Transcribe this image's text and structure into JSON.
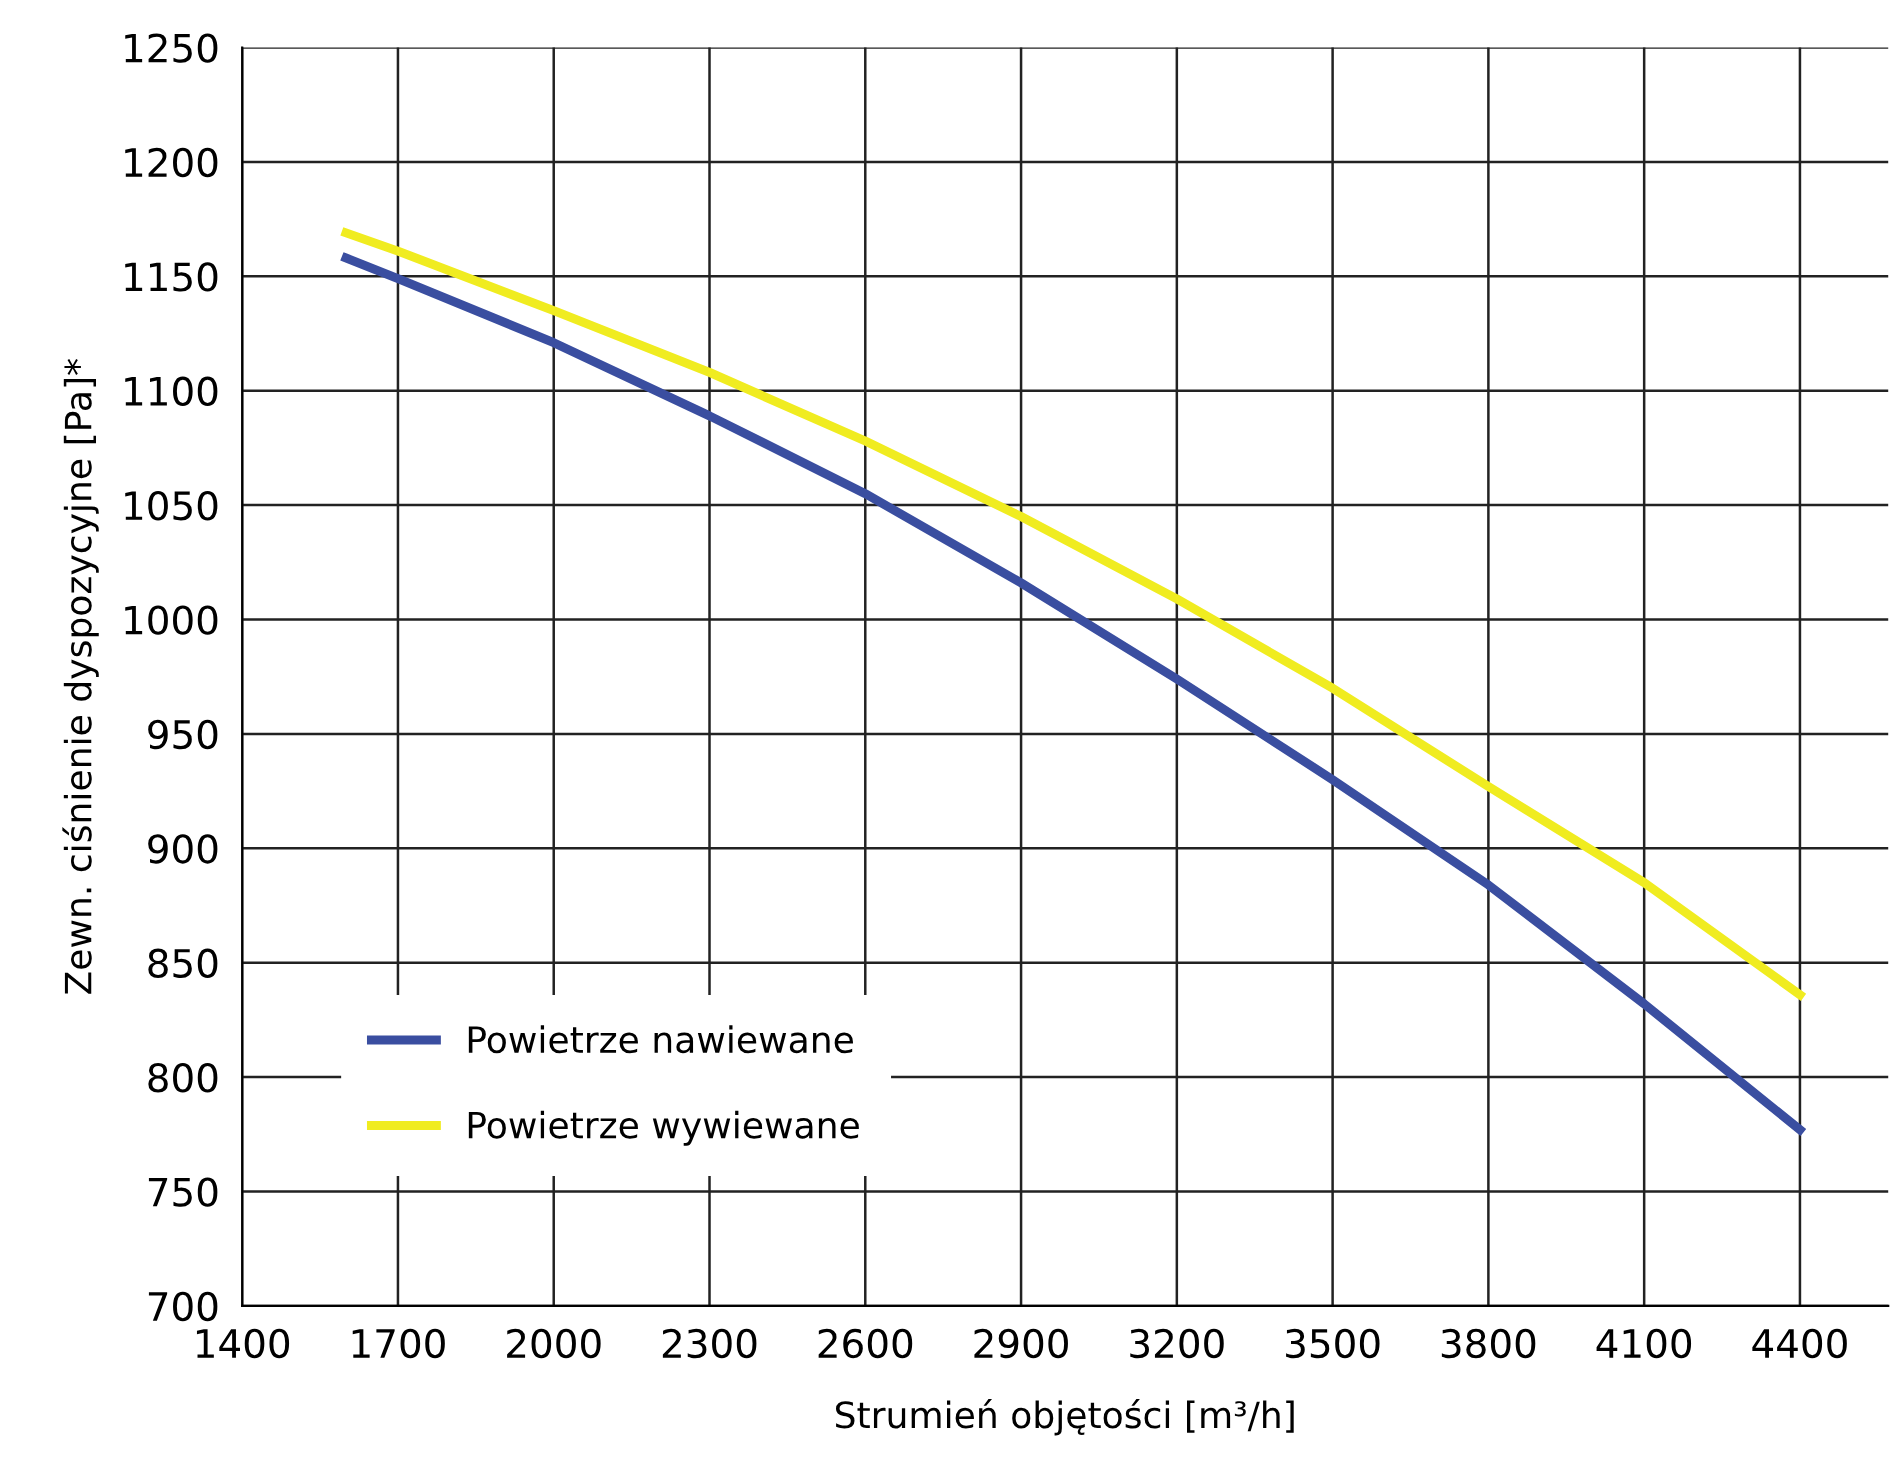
{
  "chart_data": {
    "type": "line",
    "xlabel": "Strumień objętości [m³/h]",
    "ylabel": "Zewn. ciśnienie dyspozycyjne [Pa]*",
    "xlim": [
      1400,
      4570
    ],
    "xticks": [
      1400,
      1700,
      2000,
      2300,
      2600,
      2900,
      3200,
      3500,
      3800,
      4100,
      4400
    ],
    "ylim": [
      700,
      1250
    ],
    "yticks": [
      700,
      750,
      800,
      850,
      900,
      950,
      1000,
      1050,
      1100,
      1150,
      1200,
      1250
    ],
    "grid": true,
    "legend": "bottom left",
    "marker": "none",
    "line_style": "solid",
    "series": [
      {
        "name": "Powietrze nawiewane",
        "color": "#3a4ea0",
        "x": [
          1600,
          1700,
          2000,
          2300,
          2600,
          2900,
          3200,
          3500,
          3800,
          4100,
          4400
        ],
        "values": [
          1158,
          1149,
          1121,
          1089,
          1055,
          1016,
          974,
          930,
          884,
          832,
          777
        ]
      },
      {
        "name": "Powietrze wywiewane",
        "color": "#f0ec20",
        "x": [
          1600,
          1700,
          2000,
          2300,
          2600,
          2900,
          3200,
          3500,
          3800,
          4100,
          4400
        ],
        "values": [
          1169,
          1161,
          1135,
          1108,
          1078,
          1045,
          1009,
          970,
          927,
          885,
          836
        ]
      }
    ]
  }
}
